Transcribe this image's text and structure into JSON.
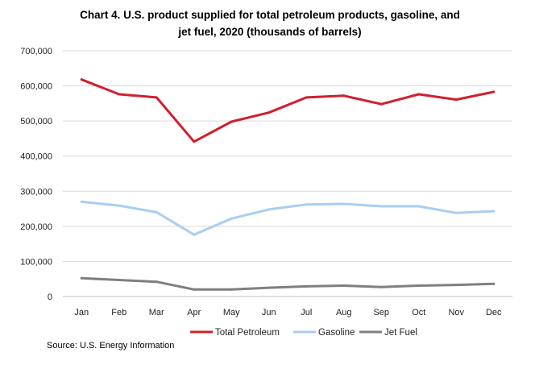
{
  "chart_data": {
    "type": "line",
    "title_line1": "Chart 4. U.S. product supplied for total petroleum products, gasoline, and",
    "title_line2": "jet fuel, 2020 (thousands of barrels)",
    "categories": [
      "Jan",
      "Feb",
      "Mar",
      "Apr",
      "May",
      "Jun",
      "Jul",
      "Aug",
      "Sep",
      "Oct",
      "Nov",
      "Dec"
    ],
    "y_ticks": [
      "0",
      "100,000",
      "200,000",
      "300,000",
      "400,000",
      "500,000",
      "600,000",
      "700,000"
    ],
    "ylim": [
      0,
      700000
    ],
    "grid": true,
    "legend_position": "bottom",
    "series": [
      {
        "name": "Total Petroleum",
        "color": "#d0202e",
        "values": [
          618000,
          576000,
          567000,
          441000,
          498000,
          524000,
          567000,
          572000,
          548000,
          576000,
          561000,
          583000
        ]
      },
      {
        "name": "Gasoline",
        "color": "#a9cef2",
        "values": [
          270000,
          259000,
          240000,
          176000,
          222000,
          248000,
          262000,
          264000,
          257000,
          257000,
          238000,
          243000
        ]
      },
      {
        "name": "Jet Fuel",
        "color": "#7f7f7f",
        "values": [
          52000,
          47000,
          42000,
          20000,
          20000,
          25000,
          29000,
          31000,
          27000,
          31000,
          33000,
          36000
        ]
      }
    ]
  },
  "source_note": "Source: U.S. Energy Information"
}
